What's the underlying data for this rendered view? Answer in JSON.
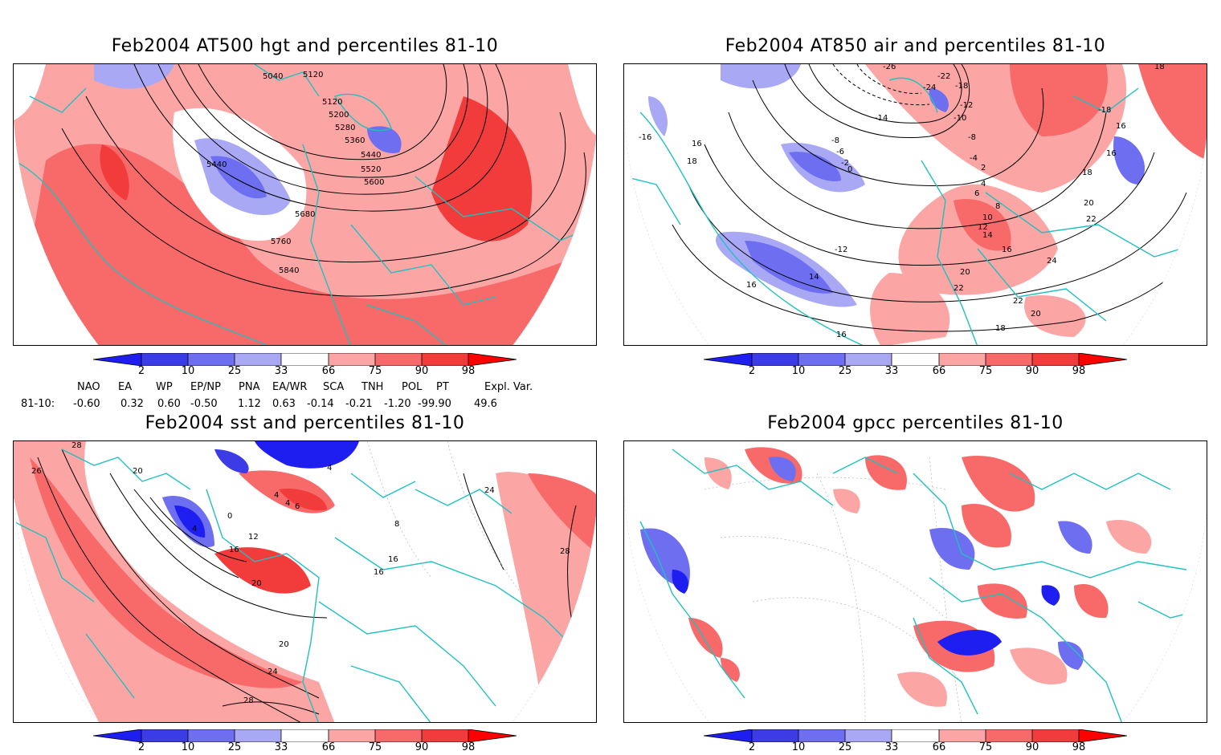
{
  "panels": [
    {
      "title": "Feb2004 AT500 hgt and percentiles 81-10",
      "contour_labels": [
        "5040",
        "5120",
        "5120",
        "5200",
        "5280",
        "5360",
        "5440",
        "5440",
        "5520",
        "5600",
        "5680",
        "5760",
        "5840"
      ]
    },
    {
      "title": "Feb2004 AT850 air and percentiles 81-10",
      "contour_labels": [
        "-26",
        "-22",
        "-24",
        "-18",
        "-12",
        "-14",
        "-10",
        "-8",
        "-8",
        "-6",
        "-4",
        "-2",
        "0",
        "2",
        "4",
        "6",
        "8",
        "10",
        "12",
        "14",
        "16",
        "18",
        "20",
        "22",
        "24",
        "-16",
        "16",
        "18",
        "16",
        "18",
        "14",
        "-12",
        "16",
        "16",
        "20",
        "22",
        "18",
        "20",
        "22",
        "16",
        "-18"
      ]
    },
    {
      "title": "Feb2004 sst and percentiles 81-10",
      "contour_labels": [
        "28",
        "26",
        "20",
        "4",
        "0",
        "12",
        "16",
        "20",
        "24",
        "28",
        "4",
        "4",
        "6",
        "4",
        "16",
        "16",
        "24",
        "28",
        "20",
        "8"
      ]
    },
    {
      "title": "Feb2004 gpcc percentiles 81-10",
      "contour_labels": []
    }
  ],
  "colorbar": {
    "ticks": [
      "2",
      "10",
      "25",
      "33",
      "66",
      "75",
      "90",
      "98"
    ],
    "colors": [
      "#1e1ef0",
      "#3c3ce6",
      "#6e6ef0",
      "#a8a8f5",
      "#ffffff",
      "#fca5a5",
      "#f86a6a",
      "#f23c3c",
      "#ff0000"
    ]
  },
  "indices": {
    "row_label": "81-10:",
    "names": [
      "NAO",
      "EA",
      "WP",
      "EP/NP",
      "PNA",
      "EA/WR",
      "SCA",
      "TNH",
      "POL",
      "PT",
      "Expl. Var."
    ],
    "values": [
      "-0.60",
      "0.32",
      "0.60",
      "-0.50",
      "1.12",
      "0.63",
      "-0.14",
      "-0.21",
      "-1.20",
      "-99.90",
      "49.6"
    ]
  },
  "colors": {
    "coast": "#20c0c0",
    "red_fill": "#f86a6a",
    "blue_fill": "#6e6ef0"
  }
}
